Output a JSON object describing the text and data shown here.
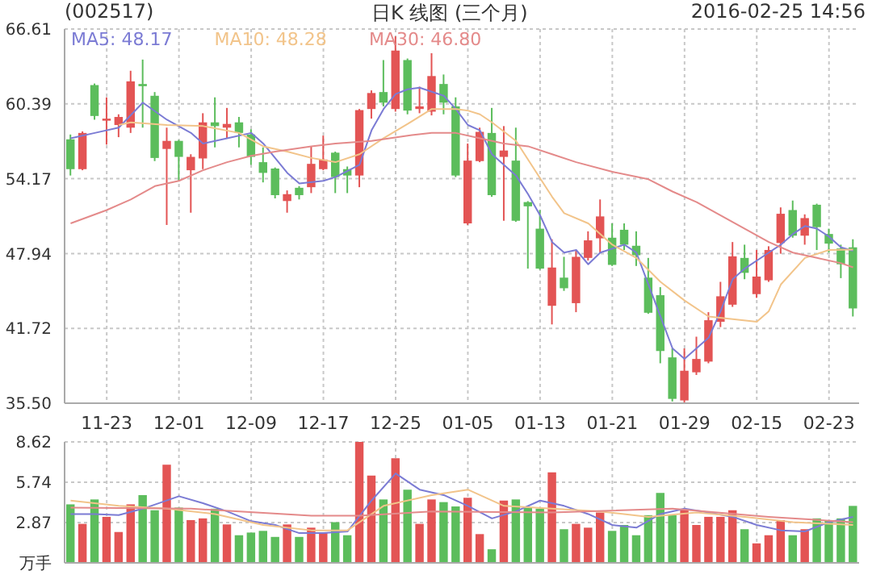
{
  "chart_data": [
    {
      "type": "candlestick",
      "title": "(002517)",
      "subtitle": "日K 线图 (三个月)",
      "annotations": [
        "2016-02-25 14:56"
      ],
      "categories": [
        null,
        null,
        null,
        "11-23",
        null,
        null,
        null,
        null,
        null,
        "12-01",
        null,
        null,
        null,
        null,
        null,
        "12-09",
        null,
        null,
        null,
        null,
        null,
        "12-17",
        null,
        null,
        null,
        null,
        null,
        "12-25",
        null,
        null,
        null,
        null,
        null,
        "01-05",
        null,
        null,
        null,
        null,
        null,
        "01-13",
        null,
        null,
        null,
        null,
        null,
        "01-21",
        null,
        null,
        null,
        null,
        null,
        "01-29",
        null,
        null,
        null,
        null,
        null,
        "02-15",
        null,
        null,
        null,
        null,
        null,
        "02-23",
        null,
        null
      ],
      "ohlc": [
        [
          57.44,
          57.84,
          54.43,
          54.96
        ],
        [
          54.96,
          58.1,
          54.87,
          57.97
        ],
        [
          61.95,
          62.08,
          59.07,
          59.38
        ],
        [
          58.99,
          60.93,
          57.0,
          59.16
        ],
        [
          58.63,
          59.52,
          57.62,
          59.3
        ],
        [
          58.41,
          63.14,
          57.97,
          62.26
        ],
        [
          62.04,
          64.07,
          58.41,
          61.86
        ],
        [
          61.06,
          61.37,
          55.63,
          55.89
        ],
        [
          56.64,
          58.41,
          50.32,
          57.31
        ],
        [
          57.31,
          57.39,
          53.99,
          55.98
        ],
        [
          54.87,
          56.2,
          51.34,
          55.98
        ],
        [
          55.85,
          59.61,
          54.96,
          58.85
        ],
        [
          58.85,
          60.93,
          56.77,
          58.54
        ],
        [
          58.41,
          60.05,
          57.53,
          58.72
        ],
        [
          58.85,
          59.3,
          56.77,
          57.97
        ],
        [
          57.84,
          58.28,
          55.32,
          55.98
        ],
        [
          55.54,
          56.77,
          53.86,
          54.65
        ],
        [
          55.01,
          55.1,
          52.53,
          52.8
        ],
        [
          52.31,
          53.19,
          51.34,
          52.88
        ],
        [
          53.41,
          53.55,
          52.44,
          52.8
        ],
        [
          53.46,
          56.86,
          52.97,
          55.4
        ],
        [
          54.96,
          57.75,
          54.87,
          55.76
        ],
        [
          56.33,
          56.42,
          52.97,
          54.3
        ],
        [
          54.96,
          55.18,
          52.97,
          54.43
        ],
        [
          54.43,
          59.96,
          53.46,
          59.87
        ],
        [
          59.96,
          61.51,
          59.16,
          61.29
        ],
        [
          61.37,
          64.03,
          60.18,
          60.49
        ],
        [
          59.96,
          66.0,
          59.74,
          64.82
        ],
        [
          64.03,
          64.16,
          59.52,
          59.83
        ],
        [
          59.96,
          61.82,
          59.61,
          60.18
        ],
        [
          59.74,
          64.6,
          59.43,
          62.7
        ],
        [
          62.04,
          62.83,
          59.52,
          60.49
        ],
        [
          60.18,
          60.93,
          54.3,
          54.43
        ],
        [
          50.45,
          57.09,
          50.32,
          55.67
        ],
        [
          55.63,
          58.41,
          55.54,
          58.06
        ],
        [
          57.97,
          60.05,
          52.66,
          52.8
        ],
        [
          55.98,
          58.54,
          50.67,
          56.51
        ],
        [
          55.67,
          58.41,
          50.58,
          50.67
        ],
        [
          52.22,
          52.3,
          46.69,
          51.87
        ],
        [
          50.01,
          51.56,
          46.6,
          46.69
        ],
        [
          43.6,
          49.13,
          42.05,
          46.78
        ],
        [
          45.94,
          47.67,
          44.84,
          45.06
        ],
        [
          43.82,
          48.24,
          43.07,
          47.67
        ],
        [
          47.58,
          49.79,
          47.36,
          49.04
        ],
        [
          49.21,
          52.44,
          48.02,
          51.03
        ],
        [
          49.26,
          50.45,
          46.91,
          47.0
        ],
        [
          49.92,
          50.45,
          48.24,
          48.68
        ],
        [
          48.59,
          49.79,
          46.91,
          47.8
        ],
        [
          45.94,
          47.58,
          42.93,
          43.02
        ],
        [
          44.48,
          45.15,
          38.82,
          39.84
        ],
        [
          39.31,
          40.06,
          35.64,
          35.86
        ],
        [
          35.73,
          40.06,
          35.52,
          38.2
        ],
        [
          38.07,
          41.03,
          37.85,
          39.18
        ],
        [
          38.96,
          43.07,
          38.82,
          42.4
        ],
        [
          42.27,
          45.59,
          41.83,
          44.39
        ],
        [
          43.69,
          48.9,
          43.51,
          47.71
        ],
        [
          47.58,
          48.68,
          45.81,
          46.34
        ],
        [
          44.57,
          48.24,
          44.26,
          46.03
        ],
        [
          45.72,
          48.55,
          45.59,
          48.24
        ],
        [
          48.82,
          51.78,
          47.93,
          51.25
        ],
        [
          51.56,
          52.35,
          49.26,
          49.43
        ],
        [
          49.43,
          51.2,
          48.68,
          50.89
        ],
        [
          52.0,
          52.09,
          48.24,
          50.14
        ],
        [
          49.57,
          50.01,
          48.02,
          48.77
        ],
        [
          48.37,
          48.68,
          45.9,
          47.05
        ],
        [
          48.46,
          49.13,
          42.71,
          43.38
        ]
      ],
      "colors": [
        "#5cbd5c",
        "#e35454",
        "#5cbd5c",
        "#e35454",
        "#e35454",
        "#e35454",
        "#5cbd5c",
        "#5cbd5c",
        "#e35454",
        "#5cbd5c",
        "#e35454",
        "#e35454",
        "#5cbd5c",
        "#e35454",
        "#5cbd5c",
        "#5cbd5c",
        "#5cbd5c",
        "#5cbd5c",
        "#e35454",
        "#5cbd5c",
        "#e35454",
        "#e35454",
        "#5cbd5c",
        "#5cbd5c",
        "#e35454",
        "#e35454",
        "#5cbd5c",
        "#e35454",
        "#5cbd5c",
        "#e35454",
        "#e35454",
        "#5cbd5c",
        "#5cbd5c",
        "#e35454",
        "#e35454",
        "#5cbd5c",
        "#e35454",
        "#5cbd5c",
        "#5cbd5c",
        "#5cbd5c",
        "#e35454",
        "#5cbd5c",
        "#e35454",
        "#e35454",
        "#e35454",
        "#5cbd5c",
        "#5cbd5c",
        "#5cbd5c",
        "#5cbd5c",
        "#5cbd5c",
        "#5cbd5c",
        "#e35454",
        "#e35454",
        "#e35454",
        "#e35454",
        "#e35454",
        "#5cbd5c",
        "#e35454",
        "#e35454",
        "#e35454",
        "#5cbd5c",
        "#e35454",
        "#5cbd5c",
        "#5cbd5c",
        "#5cbd5c",
        "#5cbd5c"
      ],
      "series": [
        {
          "type": "line",
          "name": "MA5: 48.17",
          "color": "#7b7bd4",
          "values": [
            57.53,
            null,
            57.97,
            null,
            58.41,
            null,
            60.49,
            null,
            59.07,
            null,
            57.97,
            57.09,
            null,
            57.53,
            null,
            57.97,
            57.09,
            null,
            54.65,
            53.77,
            null,
            53.99,
            54.3,
            null,
            55.32,
            58.19,
            59.96,
            61.2,
            61.6,
            61.73,
            null,
            61.06,
            59.96,
            58.63,
            58.19,
            56.2,
            55.32,
            54.43,
            52.88,
            51.12,
            48.9,
            48.02,
            48.24,
            47.05,
            48.02,
            null,
            48.68,
            48.02,
            45.37,
            42.71,
            40.06,
            39.18,
            null,
            40.94,
            43.15,
            45.81,
            46.69,
            null,
            48.02,
            48.68,
            49.57,
            50.23,
            50.01,
            49.35,
            48.46,
            48.17
          ]
        },
        {
          "type": "line",
          "name": "MA10: 48.28",
          "color": "#f2c48a",
          "values": [
            null,
            null,
            null,
            null,
            58.63,
            58.85,
            null,
            null,
            58.63,
            null,
            null,
            58.54,
            null,
            null,
            57.97,
            null,
            56.86,
            null,
            56.42,
            null,
            55.89,
            null,
            55.54,
            null,
            56.2,
            null,
            57.53,
            null,
            58.72,
            null,
            59.96,
            null,
            59.96,
            59.83,
            59.52,
            58.85,
            null,
            57.31,
            null,
            54.21,
            52.66,
            51.3,
            null,
            50.45,
            null,
            48.68,
            null,
            47.58,
            null,
            45.59,
            null,
            44.04,
            null,
            42.71,
            null,
            42.49,
            null,
            42.27,
            43.15,
            45.37,
            null,
            47.58,
            null,
            48.24,
            null,
            48.28
          ]
        },
        {
          "type": "line",
          "name": "MA30: 46.80",
          "color": "#e48a8a",
          "values": [
            50.45,
            null,
            null,
            51.56,
            null,
            52.44,
            null,
            53.55,
            null,
            53.99,
            null,
            54.87,
            null,
            55.54,
            null,
            56.07,
            null,
            56.42,
            null,
            null,
            56.86,
            null,
            57.09,
            null,
            null,
            57.31,
            null,
            null,
            57.75,
            null,
            57.97,
            null,
            57.97,
            null,
            57.53,
            null,
            57.09,
            null,
            56.86,
            null,
            56.2,
            null,
            55.54,
            null,
            null,
            54.74,
            null,
            null,
            54.12,
            null,
            53.1,
            null,
            52.22,
            null,
            51.12,
            null,
            50.01,
            null,
            48.9,
            null,
            48.02,
            null,
            47.58,
            null,
            47.14,
            46.8
          ]
        }
      ],
      "ylim": [
        35.5,
        66.61
      ],
      "yticks": [
        {
          "value": 35.5,
          "label": "35.50"
        },
        41.72,
        47.94,
        54.17,
        60.39,
        66.61
      ],
      "grid": true,
      "legend": "top left",
      "marker": "none"
    },
    {
      "type": "bar",
      "tick_labels": "y",
      "series": [
        {
          "type": "bar",
          "values": [
            4.17,
            2.78,
            4.52,
            3.28,
            2.2,
            4.17,
            4.83,
            3.75,
            6.99,
            3.94,
            3.05,
            3.17,
            3.86,
            2.74,
            1.97,
            2.16,
            2.28,
            1.85,
            2.74,
            1.85,
            2.51,
            2.12,
            2.9,
            1.97,
            8.62,
            6.22,
            4.52,
            7.46,
            5.22,
            2.78,
            4.52,
            4.33,
            4.02,
            4.64,
            2.05,
            0.97,
            4.44,
            4.52,
            3.94,
            3.86,
            6.45,
            2.4,
            2.78,
            2.51,
            3.59,
            2.28,
            2.7,
            1.97,
            3.4,
            4.98,
            3.4,
            3.79,
            2.7,
            3.28,
            3.28,
            3.75,
            2.4,
            1.39,
            1.97,
            3.05,
            1.97,
            2.4,
            3.17,
            3.01,
            3.17,
            4.06
          ],
          "colors": [
            "#5cbd5c",
            "#e35454",
            "#5cbd5c",
            "#e35454",
            "#e35454",
            "#e35454",
            "#5cbd5c",
            "#5cbd5c",
            "#e35454",
            "#5cbd5c",
            "#e35454",
            "#e35454",
            "#5cbd5c",
            "#e35454",
            "#5cbd5c",
            "#5cbd5c",
            "#5cbd5c",
            "#5cbd5c",
            "#e35454",
            "#5cbd5c",
            "#e35454",
            "#e35454",
            "#5cbd5c",
            "#5cbd5c",
            "#e35454",
            "#e35454",
            "#5cbd5c",
            "#e35454",
            "#5cbd5c",
            "#e35454",
            "#e35454",
            "#5cbd5c",
            "#5cbd5c",
            "#e35454",
            "#e35454",
            "#5cbd5c",
            "#e35454",
            "#5cbd5c",
            "#5cbd5c",
            "#5cbd5c",
            "#e35454",
            "#5cbd5c",
            "#e35454",
            "#e35454",
            "#e35454",
            "#5cbd5c",
            "#5cbd5c",
            "#5cbd5c",
            "#5cbd5c",
            "#5cbd5c",
            "#5cbd5c",
            "#e35454",
            "#e35454",
            "#e35454",
            "#e35454",
            "#e35454",
            "#5cbd5c",
            "#e35454",
            "#e35454",
            "#e35454",
            "#5cbd5c",
            "#e35454",
            "#5cbd5c",
            "#5cbd5c",
            "#5cbd5c",
            "#5cbd5c"
          ]
        },
        {
          "type": "line",
          "color": "#7b7bd4",
          "values": [
            3.48,
            null,
            3.48,
            null,
            3.4,
            null,
            3.86,
            null,
            null,
            4.75,
            null,
            4.25,
            null,
            3.67,
            null,
            2.97,
            null,
            2.7,
            null,
            2.12,
            null,
            2.12,
            null,
            2.24,
            null,
            4.44,
            null,
            6.37,
            null,
            5.22,
            null,
            4.83,
            null,
            4.06,
            null,
            3.17,
            null,
            3.67,
            null,
            4.44,
            null,
            4.06,
            null,
            3.48,
            null,
            2.7,
            null,
            2.51,
            null,
            3.48,
            null,
            3.86,
            null,
            3.59,
            null,
            3.28,
            null,
            2.7,
            null,
            2.32,
            null,
            2.24,
            null,
            2.9,
            null,
            3.28
          ]
        },
        {
          "type": "line",
          "color": "#f2c48a",
          "values": [
            4.44,
            null,
            null,
            null,
            4.06,
            null,
            null,
            null,
            3.86,
            null,
            null,
            null,
            3.48,
            null,
            null,
            null,
            2.7,
            null,
            null,
            null,
            2.32,
            null,
            null,
            2.32,
            null,
            null,
            4.06,
            null,
            null,
            null,
            4.83,
            null,
            null,
            5.22,
            null,
            null,
            4.06,
            null,
            null,
            null,
            3.86,
            null,
            null,
            null,
            3.67,
            null,
            null,
            null,
            3.28,
            null,
            null,
            null,
            3.59,
            null,
            null,
            null,
            3.28,
            null,
            null,
            null,
            2.9,
            null,
            null,
            null,
            null,
            2.7
          ]
        },
        {
          "type": "line",
          "color": "#e48a8a",
          "values": [
            3.94,
            null,
            null,
            null,
            null,
            null,
            null,
            null,
            null,
            null,
            3.86,
            null,
            null,
            null,
            null,
            null,
            null,
            null,
            null,
            null,
            3.36,
            null,
            null,
            null,
            3.36,
            null,
            null,
            null,
            null,
            null,
            3.67,
            null,
            null,
            null,
            null,
            null,
            null,
            null,
            null,
            null,
            3.59,
            null,
            null,
            null,
            null,
            null,
            null,
            null,
            null,
            null,
            3.86,
            null,
            null,
            null,
            null,
            null,
            null,
            null,
            3.28,
            null,
            null,
            null,
            null,
            null,
            null,
            2.9
          ]
        }
      ],
      "ylim": [
        0,
        8.62
      ],
      "yticks": [
        {
          "value": 0,
          "label": "万手"
        },
        2.87,
        5.74,
        8.62
      ],
      "grid": true,
      "marker": "none"
    }
  ]
}
